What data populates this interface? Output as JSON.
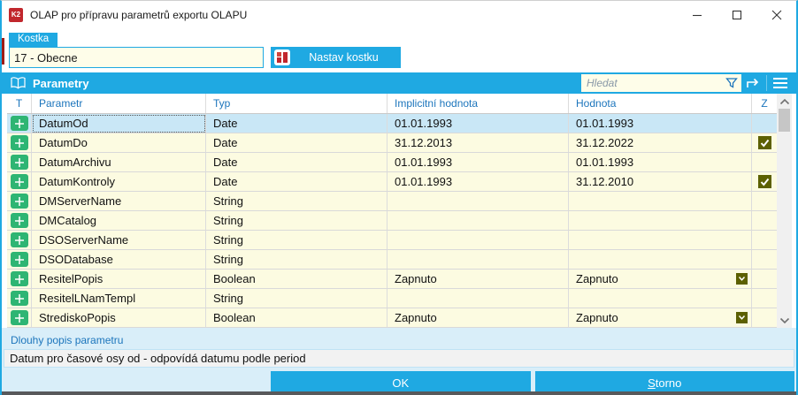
{
  "window": {
    "title": "OLAP pro přípravu parametrů exportu OLAPU",
    "icon_text": "K2"
  },
  "kostka": {
    "label": "Kostka",
    "value": "17 - Obecne",
    "button_label": "Nastav kostku"
  },
  "parametry": {
    "title": "Parametry",
    "search_placeholder": "Hledat"
  },
  "table": {
    "columns": [
      "T",
      "Parametr",
      "Typ",
      "Implicitní hodnota",
      "Hodnota",
      "Z"
    ],
    "rows": [
      {
        "parametr": "DatumOd",
        "typ": "Date",
        "implicitni": "01.01.1993",
        "hodnota": "01.01.1993",
        "z_checked": false,
        "dropdown": false,
        "selected": true
      },
      {
        "parametr": "DatumDo",
        "typ": "Date",
        "implicitni": "31.12.2013",
        "hodnota": "31.12.2022",
        "z_checked": true,
        "dropdown": false,
        "selected": false
      },
      {
        "parametr": "DatumArchivu",
        "typ": "Date",
        "implicitni": "01.01.1993",
        "hodnota": "01.01.1993",
        "z_checked": false,
        "dropdown": false,
        "selected": false
      },
      {
        "parametr": "DatumKontroly",
        "typ": "Date",
        "implicitni": "01.01.1993",
        "hodnota": "31.12.2010",
        "z_checked": true,
        "dropdown": false,
        "selected": false
      },
      {
        "parametr": "DMServerName",
        "typ": "String",
        "implicitni": "",
        "hodnota": "",
        "z_checked": false,
        "dropdown": false,
        "selected": false
      },
      {
        "parametr": "DMCatalog",
        "typ": "String",
        "implicitni": "",
        "hodnota": "",
        "z_checked": false,
        "dropdown": false,
        "selected": false
      },
      {
        "parametr": "DSOServerName",
        "typ": "String",
        "implicitni": "",
        "hodnota": "",
        "z_checked": false,
        "dropdown": false,
        "selected": false
      },
      {
        "parametr": "DSODatabase",
        "typ": "String",
        "implicitni": "",
        "hodnota": "",
        "z_checked": false,
        "dropdown": false,
        "selected": false
      },
      {
        "parametr": "ResitelPopis",
        "typ": "Boolean",
        "implicitni": "Zapnuto",
        "hodnota": "Zapnuto",
        "z_checked": false,
        "dropdown": true,
        "selected": false
      },
      {
        "parametr": "ResitelLNamTempl",
        "typ": "String",
        "implicitni": "",
        "hodnota": "",
        "z_checked": false,
        "dropdown": false,
        "selected": false
      },
      {
        "parametr": "StrediskoPopis",
        "typ": "Boolean",
        "implicitni": "Zapnuto",
        "hodnota": "Zapnuto",
        "z_checked": false,
        "dropdown": true,
        "selected": false
      }
    ]
  },
  "footer": {
    "label": "Dlouhy popis parametru",
    "description": "Datum pro časové osy od - odpovídá datumu podle period",
    "ok_label": "OK",
    "storno_label": "Storno"
  },
  "colors": {
    "accent": "#1FA9E2",
    "blue-text": "#1C75BC",
    "row-bg": "#FCFBE1",
    "selected-bg": "#C9E7F6",
    "olive": "#5C6000",
    "green": "#2EB573",
    "red": "#C1272D",
    "footer-bg": "#D9EEF9",
    "desc-bg": "#F2F2F2"
  }
}
